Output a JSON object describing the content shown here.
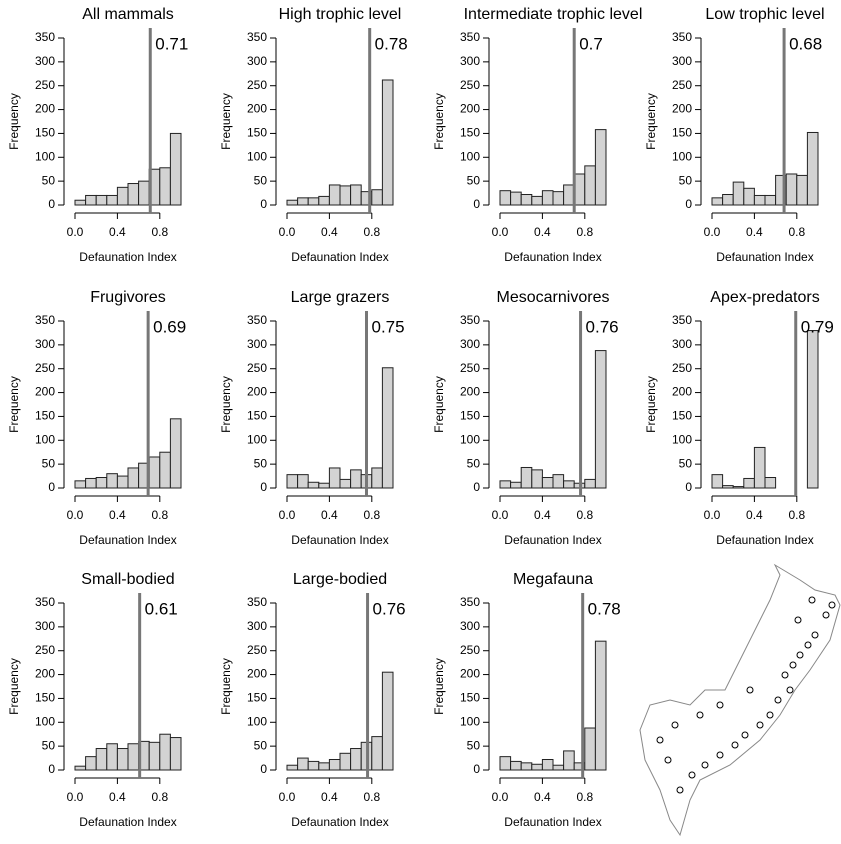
{
  "chart_data": [
    {
      "type": "histogram",
      "title": "All mammals",
      "xlabel": "Defaunation Index",
      "ylabel": "Frequency",
      "bins": [
        0,
        0.1,
        0.2,
        0.3,
        0.4,
        0.5,
        0.6,
        0.7,
        0.8,
        0.9,
        1.0
      ],
      "values": [
        10,
        20,
        20,
        20,
        37,
        45,
        50,
        75,
        78,
        150
      ],
      "vline": 0.71,
      "xlim": [
        0,
        1
      ],
      "ylim": [
        0,
        350
      ],
      "xticks": [
        {
          "value": 0,
          "label": "0.0"
        },
        {
          "value": 0.4,
          "label": "0.4"
        },
        {
          "value": 0.8,
          "label": "0.8"
        }
      ],
      "yticks": [
        0,
        50,
        100,
        150,
        200,
        250,
        300,
        350
      ],
      "color": "#d3d3d3"
    },
    {
      "type": "histogram",
      "title": "High trophic level",
      "xlabel": "Defaunation Index",
      "ylabel": "Frequency",
      "bins": [
        0,
        0.1,
        0.2,
        0.3,
        0.4,
        0.5,
        0.6,
        0.7,
        0.8,
        0.9,
        1.0
      ],
      "values": [
        10,
        15,
        15,
        18,
        42,
        40,
        42,
        28,
        32,
        262
      ],
      "vline": 0.78,
      "xlim": [
        0,
        1
      ],
      "ylim": [
        0,
        350
      ],
      "xticks": [
        {
          "value": 0,
          "label": "0.0"
        },
        {
          "value": 0.4,
          "label": "0.4"
        },
        {
          "value": 0.8,
          "label": "0.8"
        }
      ],
      "yticks": [
        0,
        50,
        100,
        150,
        200,
        250,
        300,
        350
      ],
      "color": "#d3d3d3"
    },
    {
      "type": "histogram",
      "title": "Intermediate trophic level",
      "xlabel": "Defaunation Index",
      "ylabel": "Frequency",
      "bins": [
        0,
        0.1,
        0.2,
        0.3,
        0.4,
        0.5,
        0.6,
        0.7,
        0.8,
        0.9,
        1.0
      ],
      "values": [
        30,
        27,
        22,
        18,
        30,
        28,
        42,
        65,
        82,
        158
      ],
      "vline": 0.7,
      "xlim": [
        0,
        1
      ],
      "ylim": [
        0,
        350
      ],
      "xticks": [
        {
          "value": 0,
          "label": "0.0"
        },
        {
          "value": 0.4,
          "label": "0.4"
        },
        {
          "value": 0.8,
          "label": "0.8"
        }
      ],
      "yticks": [
        0,
        50,
        100,
        150,
        200,
        250,
        300,
        350
      ],
      "color": "#d3d3d3"
    },
    {
      "type": "histogram",
      "title": "Low trophic level",
      "xlabel": "Defaunation Index",
      "ylabel": "Frequency",
      "bins": [
        0,
        0.1,
        0.2,
        0.3,
        0.4,
        0.5,
        0.6,
        0.7,
        0.8,
        0.9,
        1.0
      ],
      "values": [
        15,
        22,
        48,
        35,
        20,
        20,
        62,
        65,
        62,
        152
      ],
      "vline": 0.68,
      "xlim": [
        0,
        1
      ],
      "ylim": [
        0,
        350
      ],
      "xticks": [
        {
          "value": 0,
          "label": "0.0"
        },
        {
          "value": 0.4,
          "label": "0.4"
        },
        {
          "value": 0.8,
          "label": "0.8"
        }
      ],
      "yticks": [
        0,
        50,
        100,
        150,
        200,
        250,
        300,
        350
      ],
      "color": "#d3d3d3"
    },
    {
      "type": "histogram",
      "title": "Frugivores",
      "xlabel": "Defaunation Index",
      "ylabel": "Frequency",
      "bins": [
        0,
        0.1,
        0.2,
        0.3,
        0.4,
        0.5,
        0.6,
        0.7,
        0.8,
        0.9,
        1.0
      ],
      "values": [
        15,
        20,
        22,
        30,
        25,
        42,
        52,
        65,
        75,
        145
      ],
      "vline": 0.69,
      "xlim": [
        0,
        1
      ],
      "ylim": [
        0,
        350
      ],
      "xticks": [
        {
          "value": 0,
          "label": "0.0"
        },
        {
          "value": 0.4,
          "label": "0.4"
        },
        {
          "value": 0.8,
          "label": "0.8"
        }
      ],
      "yticks": [
        0,
        50,
        100,
        150,
        200,
        250,
        300,
        350
      ],
      "color": "#d3d3d3"
    },
    {
      "type": "histogram",
      "title": "Large grazers",
      "xlabel": "Defaunation Index",
      "ylabel": "Frequency",
      "bins": [
        0,
        0.1,
        0.2,
        0.3,
        0.4,
        0.5,
        0.6,
        0.7,
        0.8,
        0.9,
        1.0
      ],
      "values": [
        28,
        28,
        12,
        10,
        42,
        18,
        38,
        28,
        42,
        252
      ],
      "vline": 0.75,
      "xlim": [
        0,
        1
      ],
      "ylim": [
        0,
        350
      ],
      "xticks": [
        {
          "value": 0,
          "label": "0.0"
        },
        {
          "value": 0.4,
          "label": "0.4"
        },
        {
          "value": 0.8,
          "label": "0.8"
        }
      ],
      "yticks": [
        0,
        50,
        100,
        150,
        200,
        250,
        300,
        350
      ],
      "color": "#d3d3d3"
    },
    {
      "type": "histogram",
      "title": "Mesocarnivores",
      "xlabel": "Defaunation Index",
      "ylabel": "Frequency",
      "bins": [
        0,
        0.1,
        0.2,
        0.3,
        0.4,
        0.5,
        0.6,
        0.7,
        0.8,
        0.9,
        1.0
      ],
      "values": [
        15,
        12,
        43,
        38,
        22,
        28,
        15,
        10,
        18,
        288
      ],
      "vline": 0.76,
      "xlim": [
        0,
        1
      ],
      "ylim": [
        0,
        350
      ],
      "xticks": [
        {
          "value": 0,
          "label": "0.0"
        },
        {
          "value": 0.4,
          "label": "0.4"
        },
        {
          "value": 0.8,
          "label": "0.8"
        }
      ],
      "yticks": [
        0,
        50,
        100,
        150,
        200,
        250,
        300,
        350
      ],
      "color": "#d3d3d3"
    },
    {
      "type": "histogram",
      "title": "Apex-predators",
      "xlabel": "Defaunation Index",
      "ylabel": "Frequency",
      "bins": [
        0,
        0.1,
        0.2,
        0.3,
        0.4,
        0.5,
        0.6,
        0.7,
        0.8,
        0.9,
        1.0
      ],
      "values": [
        28,
        5,
        3,
        20,
        85,
        22,
        0,
        0,
        0,
        330
      ],
      "vline": 0.79,
      "xlim": [
        0,
        1
      ],
      "ylim": [
        0,
        350
      ],
      "xticks": [
        {
          "value": 0,
          "label": "0.0"
        },
        {
          "value": 0.4,
          "label": "0.4"
        },
        {
          "value": 0.8,
          "label": "0.8"
        }
      ],
      "yticks": [
        0,
        50,
        100,
        150,
        200,
        250,
        300,
        350
      ],
      "color": "#d3d3d3"
    },
    {
      "type": "histogram",
      "title": "Small-bodied",
      "xlabel": "Defaunation Index",
      "ylabel": "Frequency",
      "bins": [
        0,
        0.1,
        0.2,
        0.3,
        0.4,
        0.5,
        0.6,
        0.7,
        0.8,
        0.9,
        1.0
      ],
      "values": [
        8,
        28,
        45,
        55,
        45,
        55,
        60,
        58,
        75,
        68
      ],
      "vline": 0.61,
      "xlim": [
        0,
        1
      ],
      "ylim": [
        0,
        350
      ],
      "xticks": [
        {
          "value": 0,
          "label": "0.0"
        },
        {
          "value": 0.4,
          "label": "0.4"
        },
        {
          "value": 0.8,
          "label": "0.8"
        }
      ],
      "yticks": [
        0,
        50,
        100,
        150,
        200,
        250,
        300,
        350
      ],
      "color": "#d3d3d3"
    },
    {
      "type": "histogram",
      "title": "Large-bodied",
      "xlabel": "Defaunation Index",
      "ylabel": "Frequency",
      "bins": [
        0,
        0.1,
        0.2,
        0.3,
        0.4,
        0.5,
        0.6,
        0.7,
        0.8,
        0.9,
        1.0
      ],
      "values": [
        10,
        25,
        18,
        15,
        22,
        35,
        45,
        58,
        70,
        205
      ],
      "vline": 0.76,
      "xlim": [
        0,
        1
      ],
      "ylim": [
        0,
        350
      ],
      "xticks": [
        {
          "value": 0,
          "label": "0.0"
        },
        {
          "value": 0.4,
          "label": "0.4"
        },
        {
          "value": 0.8,
          "label": "0.8"
        }
      ],
      "yticks": [
        0,
        50,
        100,
        150,
        200,
        250,
        300,
        350
      ],
      "color": "#d3d3d3"
    },
    {
      "type": "histogram",
      "title": "Megafauna",
      "xlabel": "Defaunation Index",
      "ylabel": "Frequency",
      "bins": [
        0,
        0.1,
        0.2,
        0.3,
        0.4,
        0.5,
        0.6,
        0.7,
        0.8,
        0.9,
        1.0
      ],
      "values": [
        28,
        18,
        15,
        12,
        22,
        10,
        40,
        15,
        88,
        270
      ],
      "vline": 0.78,
      "xlim": [
        0,
        1
      ],
      "ylim": [
        0,
        350
      ],
      "xticks": [
        {
          "value": 0,
          "label": "0.0"
        },
        {
          "value": 0.4,
          "label": "0.4"
        },
        {
          "value": 0.8,
          "label": "0.8"
        }
      ],
      "yticks": [
        0,
        50,
        100,
        150,
        200,
        250,
        300,
        350
      ],
      "color": "#d3d3d3"
    }
  ]
}
